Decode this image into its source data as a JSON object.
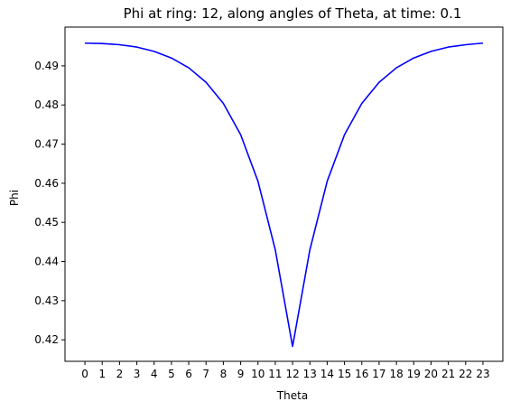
{
  "chart_data": {
    "type": "line",
    "title": "Phi at ring: 12, along angles of Theta, at time: 0.1",
    "xlabel": "Theta",
    "ylabel": "Phi",
    "x": [
      0,
      1,
      2,
      3,
      4,
      5,
      6,
      7,
      8,
      9,
      10,
      11,
      12,
      13,
      14,
      15,
      16,
      17,
      18,
      19,
      20,
      21,
      22,
      23
    ],
    "xticks": [
      "0",
      "1",
      "2",
      "3",
      "4",
      "5",
      "6",
      "7",
      "8",
      "9",
      "10",
      "11",
      "12",
      "13",
      "14",
      "15",
      "16",
      "17",
      "18",
      "19",
      "20",
      "21",
      "22",
      "23"
    ],
    "yticks": [
      0.42,
      0.43,
      0.44,
      0.45,
      0.46,
      0.47,
      0.48,
      0.49
    ],
    "ytick_labels": [
      "0.42",
      "0.43",
      "0.44",
      "0.45",
      "0.46",
      "0.47",
      "0.48",
      "0.49"
    ],
    "xlim": [
      -1.15,
      24.15
    ],
    "ylim": [
      0.4145,
      0.4999
    ],
    "grid": false,
    "series": [
      {
        "color": "#0000ff",
        "values": [
          0.4958,
          0.4957,
          0.4954,
          0.4948,
          0.4937,
          0.492,
          0.4895,
          0.4858,
          0.4804,
          0.4724,
          0.4605,
          0.443,
          0.4183,
          0.443,
          0.4605,
          0.4724,
          0.4804,
          0.4858,
          0.4895,
          0.492,
          0.4937,
          0.4948,
          0.4954,
          0.4958
        ]
      }
    ]
  }
}
